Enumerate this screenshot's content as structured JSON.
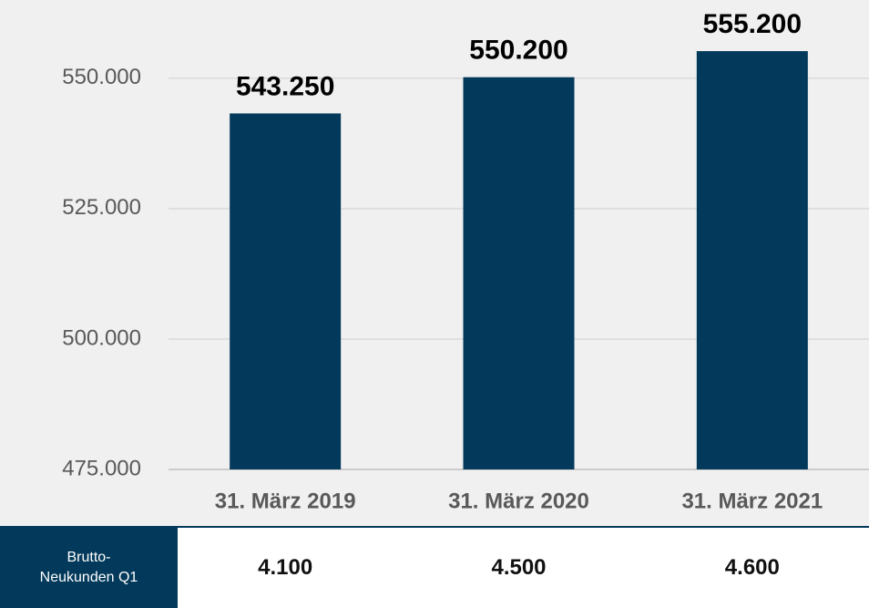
{
  "chart_data": {
    "type": "bar",
    "categories": [
      "31. März 2019",
      "31. März 2020",
      "31. März 2021"
    ],
    "values": [
      543250,
      550200,
      555200
    ],
    "value_labels": [
      "543.250",
      "550.200",
      "555.200"
    ],
    "color": "#033a5b",
    "ylim": [
      475000,
      565000
    ],
    "yticks": [
      {
        "value": 475000,
        "label": "475.000"
      },
      {
        "value": 500000,
        "label": "500.000"
      },
      {
        "value": 525000,
        "label": "525.000"
      },
      {
        "value": 550000,
        "label": "550.000"
      }
    ],
    "grid": true
  },
  "table": {
    "header": "Brutto-Neukunden Q1",
    "values": [
      4100,
      4500,
      4600
    ],
    "value_labels": [
      "4.100",
      "4.500",
      "4.600"
    ]
  }
}
